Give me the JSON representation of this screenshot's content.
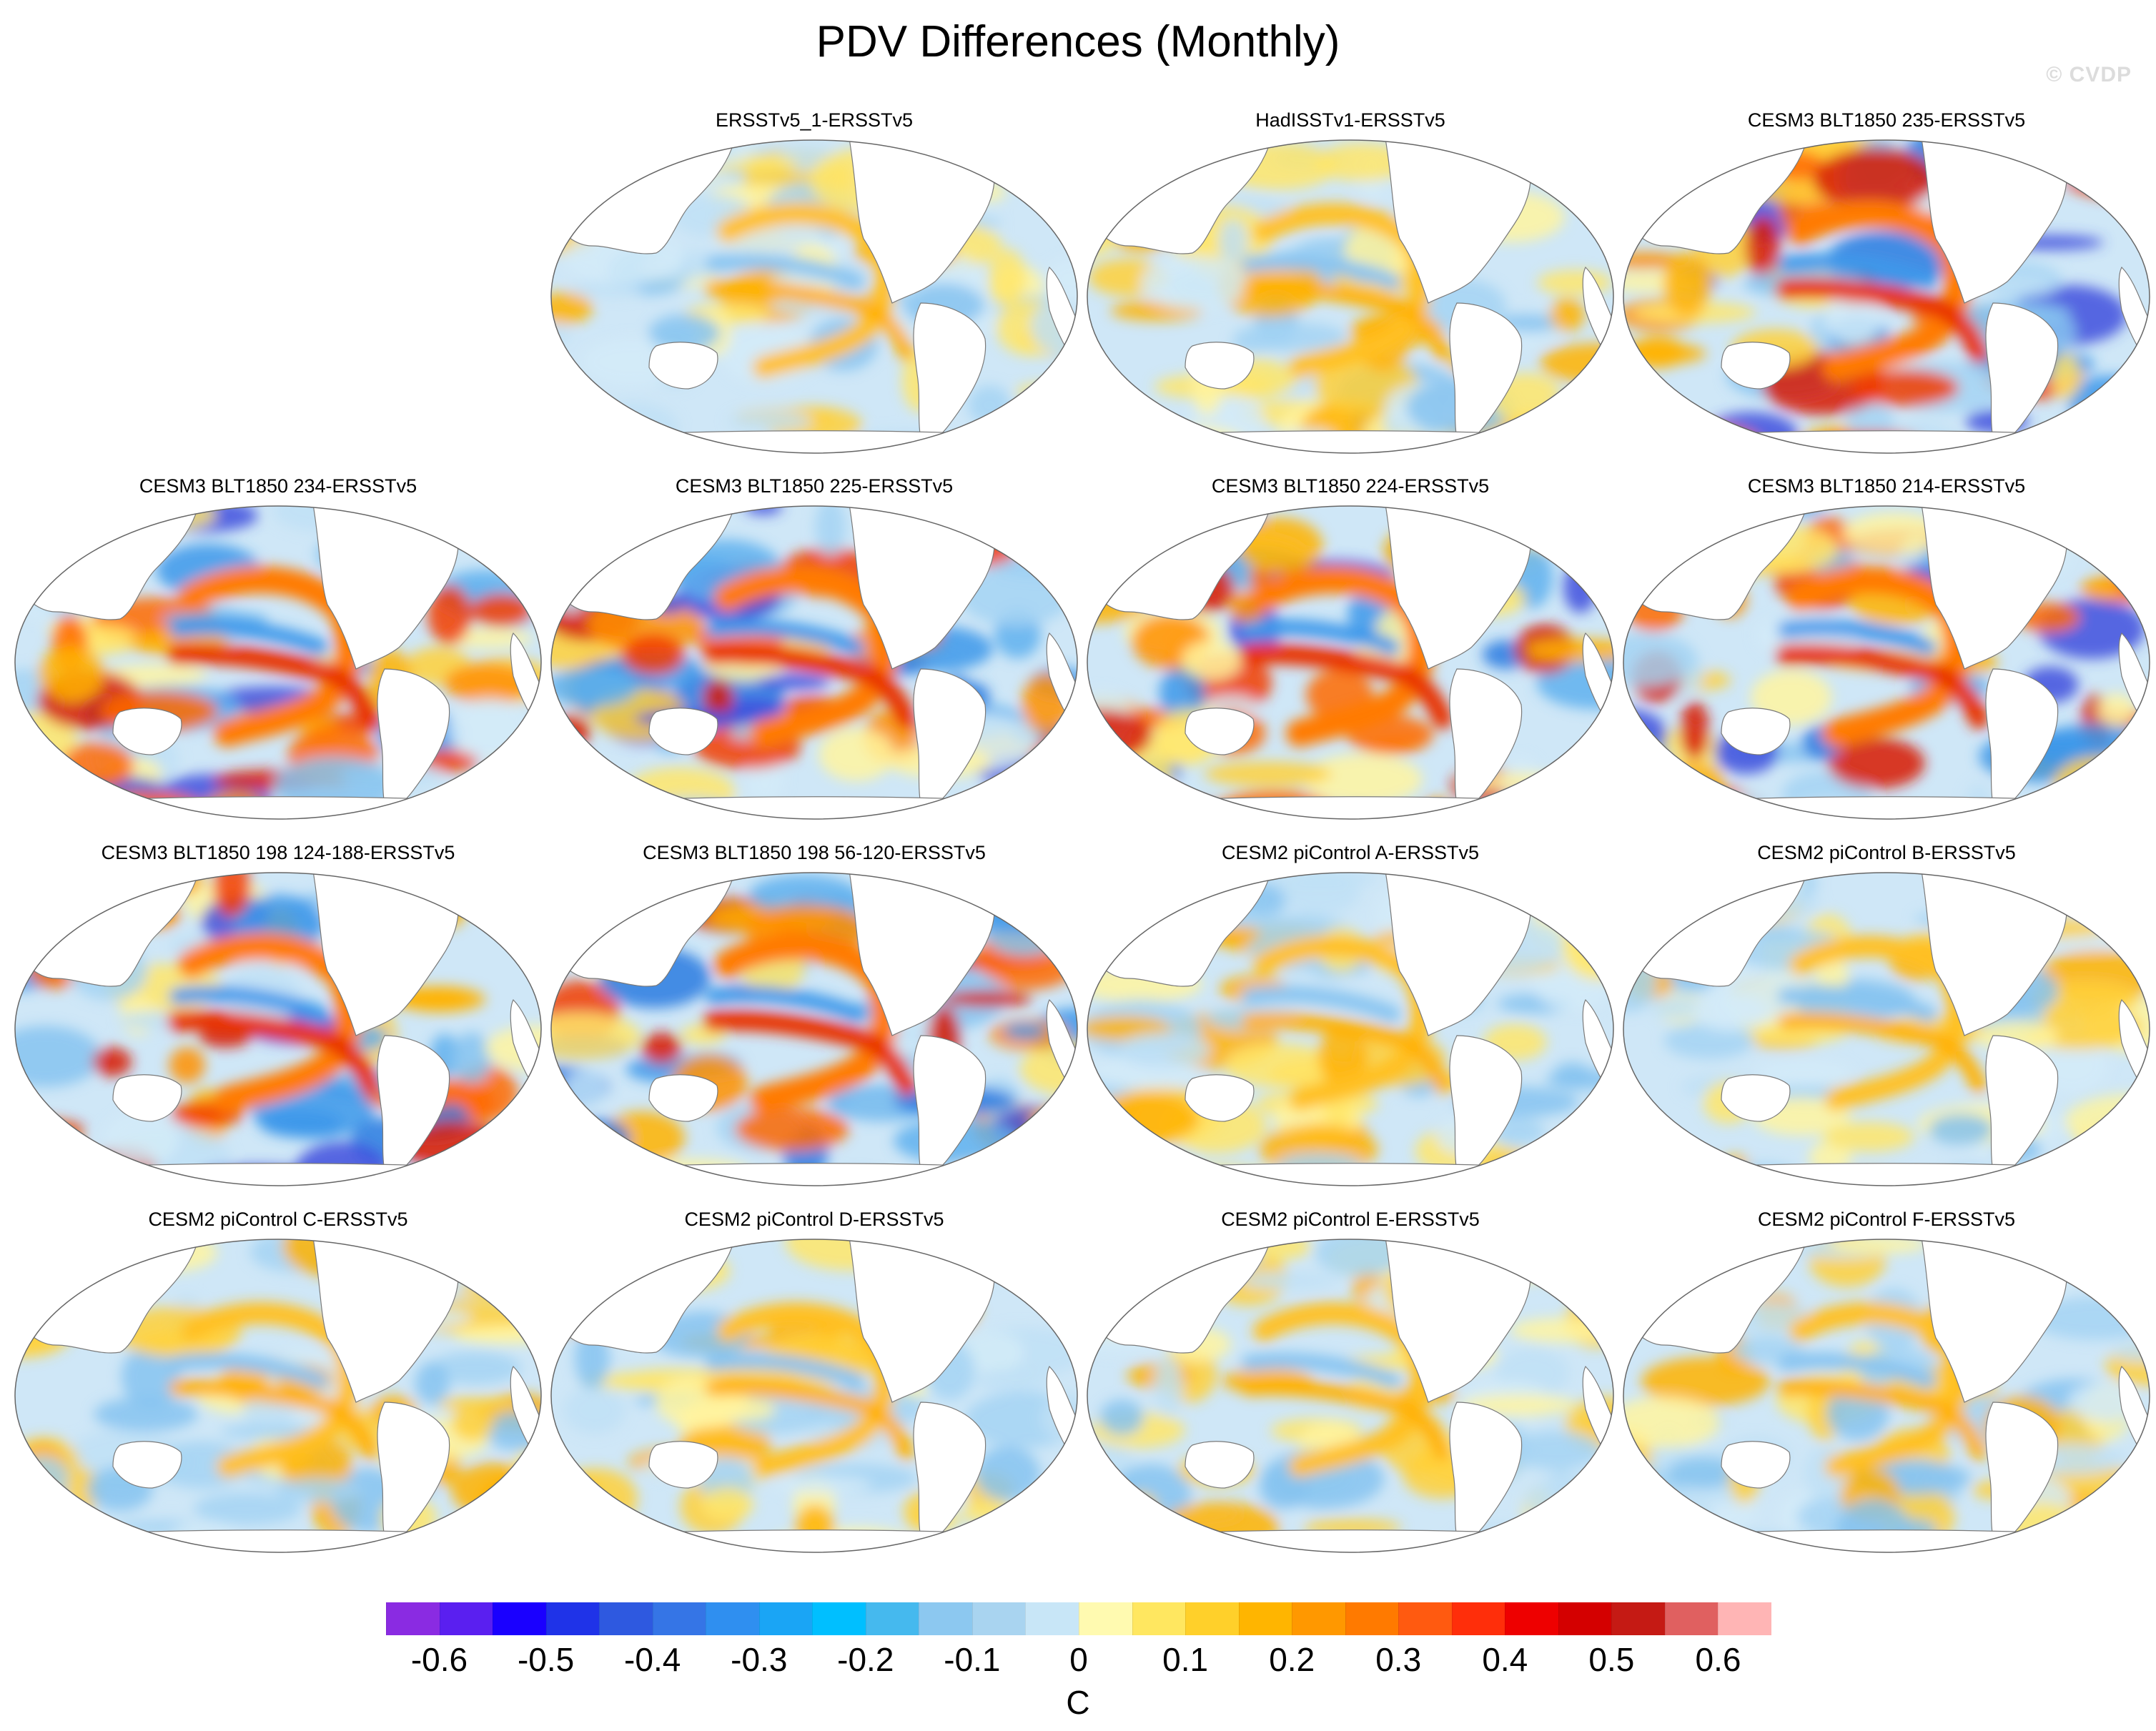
{
  "title": "PDV Differences (Monthly)",
  "watermark": "© CVDP",
  "panels": [
    {
      "title": "ERSSTv5_1-ERSSTv5"
    },
    {
      "title": "HadISSTv1-ERSSTv5"
    },
    {
      "title": "CESM3 BLT1850 235-ERSSTv5"
    },
    {
      "title": "CESM3 BLT1850 234-ERSSTv5"
    },
    {
      "title": "CESM3 BLT1850 225-ERSSTv5"
    },
    {
      "title": "CESM3 BLT1850 224-ERSSTv5"
    },
    {
      "title": "CESM3 BLT1850 214-ERSSTv5"
    },
    {
      "title": "CESM3 BLT1850 198 124-188-ERSSTv5"
    },
    {
      "title": "CESM3 BLT1850 198 56-120-ERSSTv5"
    },
    {
      "title": "CESM2 piControl A-ERSSTv5"
    },
    {
      "title": "CESM2 piControl B-ERSSTv5"
    },
    {
      "title": "CESM2 piControl C-ERSSTv5"
    },
    {
      "title": "CESM2 piControl D-ERSSTv5"
    },
    {
      "title": "CESM2 piControl E-ERSSTv5"
    },
    {
      "title": "CESM2 piControl F-ERSSTv5"
    }
  ],
  "colorbar": {
    "units": "C",
    "labels": [
      "-0.6",
      "-0.5",
      "-0.4",
      "-0.3",
      "-0.2",
      "-0.1",
      "0",
      "0.1",
      "0.2",
      "0.3",
      "0.4",
      "0.5",
      "0.6"
    ],
    "colors": [
      "#8a2be2",
      "#5a1ff0",
      "#1a00ff",
      "#1f33e8",
      "#2e59e0",
      "#3575e6",
      "#2f8ff0",
      "#1aa5f5",
      "#00bfff",
      "#45b9ee",
      "#8cc8f0",
      "#a9d4f0",
      "#c8e6f7",
      "#fffab0",
      "#ffe760",
      "#ffd02a",
      "#ffb500",
      "#ff9800",
      "#ff7a00",
      "#ff5a10",
      "#ff2e0a",
      "#ee0000",
      "#d40000",
      "#c51a14",
      "#e06060",
      "#ffb5b5"
    ]
  }
}
